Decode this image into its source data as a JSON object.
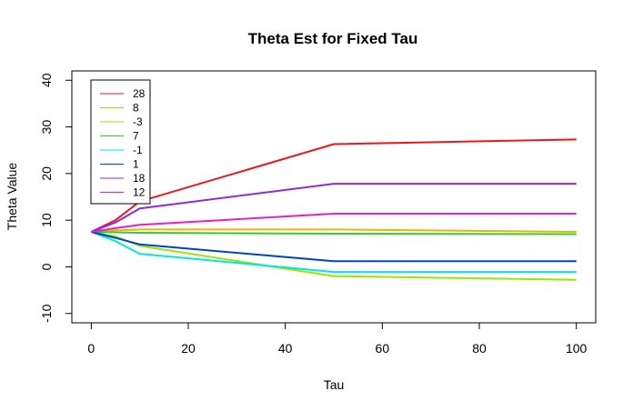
{
  "chart_data": {
    "type": "line",
    "title": "Theta Est for Fixed Tau",
    "xlabel": "Tau",
    "ylabel": "Theta Value",
    "xlim": [
      -4,
      104
    ],
    "ylim": [
      -12,
      42
    ],
    "xticks": [
      0,
      20,
      40,
      60,
      80,
      100
    ],
    "yticks": [
      -10,
      0,
      10,
      20,
      30,
      40
    ],
    "grid": false,
    "legend_position": "top-left",
    "x": [
      0,
      5,
      10,
      50,
      100
    ],
    "series": [
      {
        "name": "28",
        "color": "#e41a1c",
        "values": [
          7.5,
          10.0,
          14.0,
          26.3,
          27.3
        ]
      },
      {
        "name": "8",
        "color": "#e6b800",
        "values": [
          7.5,
          7.8,
          8.0,
          8.0,
          7.5
        ]
      },
      {
        "name": "-3",
        "color": "#99e600",
        "values": [
          7.5,
          6.5,
          4.5,
          -2.0,
          -2.8
        ]
      },
      {
        "name": "7",
        "color": "#33cc33",
        "values": [
          7.5,
          7.4,
          7.3,
          7.1,
          7.0
        ]
      },
      {
        "name": "-1",
        "color": "#00e5e5",
        "values": [
          7.5,
          5.5,
          2.8,
          -1.1,
          -1.1
        ]
      },
      {
        "name": "1",
        "color": "#0040cc",
        "values": [
          7.5,
          6.2,
          4.8,
          1.2,
          1.2
        ]
      },
      {
        "name": "18",
        "color": "#8a2be2",
        "values": [
          7.5,
          9.5,
          12.5,
          17.8,
          17.8
        ]
      },
      {
        "name": "12",
        "color": "#e620c8",
        "values": [
          7.5,
          8.3,
          9.0,
          11.4,
          11.4
        ]
      }
    ]
  }
}
